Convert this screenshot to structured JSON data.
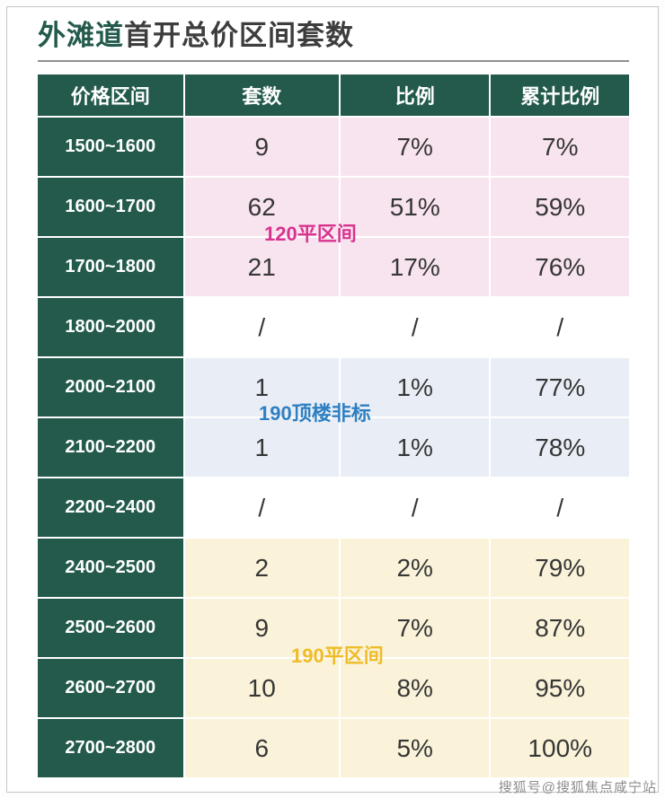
{
  "page": {
    "title_highlight": "外滩道",
    "title_rest": "首开总价区间套数",
    "watermark": "搜狐号@搜狐焦点咸宁站"
  },
  "table": {
    "headers": [
      "价格区间",
      "套数",
      "比例",
      "累计比例"
    ],
    "rows": [
      {
        "range": "1500~1600",
        "count": "9",
        "pct": "7%",
        "cum": "7%"
      },
      {
        "range": "1600~1700",
        "count": "62",
        "pct": "51%",
        "cum": "59%"
      },
      {
        "range": "1700~1800",
        "count": "21",
        "pct": "17%",
        "cum": "76%"
      },
      {
        "range": "1800~2000",
        "count": "/",
        "pct": "/",
        "cum": "/"
      },
      {
        "range": "2000~2100",
        "count": "1",
        "pct": "1%",
        "cum": "77%"
      },
      {
        "range": "2100~2200",
        "count": "1",
        "pct": "1%",
        "cum": "78%"
      },
      {
        "range": "2200~2400",
        "count": "/",
        "pct": "/",
        "cum": "/"
      },
      {
        "range": "2400~2500",
        "count": "2",
        "pct": "2%",
        "cum": "79%"
      },
      {
        "range": "2500~2600",
        "count": "9",
        "pct": "7%",
        "cum": "87%"
      },
      {
        "range": "2600~2700",
        "count": "10",
        "pct": "8%",
        "cum": "95%"
      },
      {
        "range": "2700~2800",
        "count": "6",
        "pct": "5%",
        "cum": "100%"
      }
    ]
  },
  "annotations": [
    {
      "text": "120平区间",
      "color": "#d8338f"
    },
    {
      "text": "190顶楼非标",
      "color": "#2f7fc1"
    },
    {
      "text": "190平区间",
      "color": "#efbb28"
    }
  ],
  "colors": {
    "header_bg": "#235a4c",
    "group_pink": "#f8e4ef",
    "group_blue": "#e9eef6",
    "group_yellow": "#faf3d9",
    "group_plain": "#ffffff"
  },
  "chart_data": {
    "type": "table",
    "title": "外滩道首开总价区间套数",
    "columns": [
      "价格区间",
      "套数",
      "比例",
      "累计比例"
    ],
    "rows": [
      [
        "1500~1600",
        "9",
        "7%",
        "7%"
      ],
      [
        "1600~1700",
        "62",
        "51%",
        "59%"
      ],
      [
        "1700~1800",
        "21",
        "17%",
        "76%"
      ],
      [
        "1800~2000",
        "/",
        "/",
        "/"
      ],
      [
        "2000~2100",
        "1",
        "1%",
        "77%"
      ],
      [
        "2100~2200",
        "1",
        "1%",
        "78%"
      ],
      [
        "2200~2400",
        "/",
        "/",
        "/"
      ],
      [
        "2400~2500",
        "2",
        "2%",
        "79%"
      ],
      [
        "2500~2600",
        "9",
        "7%",
        "87%"
      ],
      [
        "2600~2700",
        "10",
        "8%",
        "95%"
      ],
      [
        "2700~2800",
        "6",
        "5%",
        "100%"
      ]
    ],
    "annotations": [
      {
        "text": "120平区间",
        "applies_to_rows": [
          "1500~1600",
          "1600~1700",
          "1700~1800"
        ]
      },
      {
        "text": "190顶楼非标",
        "applies_to_rows": [
          "2000~2100",
          "2100~2200"
        ]
      },
      {
        "text": "190平区间",
        "applies_to_rows": [
          "2400~2500",
          "2500~2600",
          "2600~2700",
          "2700~2800"
        ]
      }
    ]
  }
}
